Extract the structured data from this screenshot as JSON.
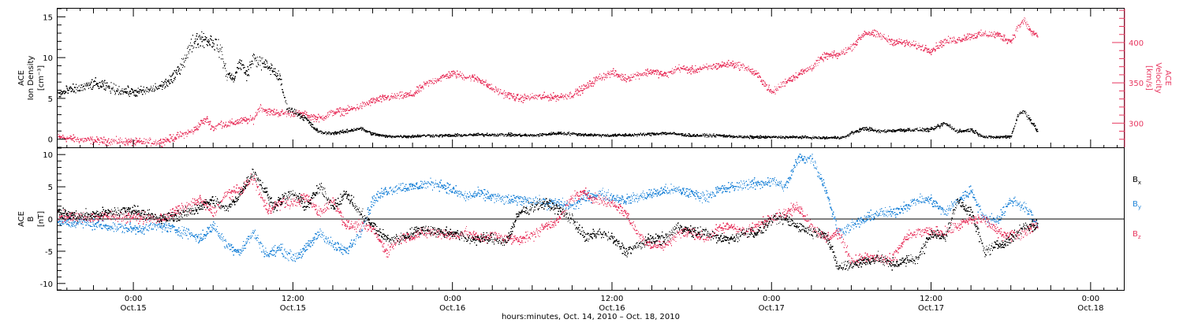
{
  "colors": {
    "black": "#000000",
    "red": "#e8365f",
    "blue": "#1f84d8"
  },
  "footer_label": "hours:minutes, Oct. 14, 2010 – Oct. 18, 2010",
  "time_ticks": [
    {
      "time": "0:00",
      "date": "Oct.15",
      "hour": 24
    },
    {
      "time": "12:00",
      "date": "Oct.15",
      "hour": 36
    },
    {
      "time": "0:00",
      "date": "Oct.16",
      "hour": 48
    },
    {
      "time": "12:00",
      "date": "Oct.16",
      "hour": 60
    },
    {
      "time": "0:00",
      "date": "Oct.17",
      "hour": 72
    },
    {
      "time": "12:00",
      "date": "Oct.17",
      "hour": 84
    },
    {
      "time": "0:00",
      "date": "Oct.18",
      "hour": 96
    }
  ],
  "chart_data": [
    {
      "type": "scatter",
      "panel": "top",
      "xlim_hours": [
        18.3,
        98.5
      ],
      "ylabel": [
        "ACE",
        "Ion Density",
        "[cm⁻³]"
      ],
      "ylim": [
        -1,
        16
      ],
      "yticks": [
        0,
        5,
        10,
        15
      ],
      "y2label": [
        "ACE",
        "Velocity",
        "[km/s]"
      ],
      "y2lim": [
        270,
        442
      ],
      "y2ticks": [
        300,
        350,
        400
      ],
      "series": [
        {
          "axis": "left",
          "color": "black",
          "x": [
            18.3,
            19,
            20,
            21,
            22,
            23,
            24,
            25,
            26,
            27,
            28,
            28.5,
            29,
            30,
            30.5,
            31,
            31.5,
            32,
            32.5,
            33,
            33.5,
            34,
            34.5,
            35,
            35.5,
            36,
            36.5,
            37,
            37.5,
            38,
            38.5,
            39,
            40,
            41,
            42,
            43,
            44,
            45,
            46,
            47,
            48,
            50,
            52,
            54,
            56,
            58,
            60,
            62,
            64,
            66,
            68,
            70,
            72,
            74,
            76,
            77.5,
            78,
            79,
            80,
            82,
            84,
            85,
            86,
            87,
            88,
            89,
            90,
            90.5,
            91,
            92
          ],
          "y": [
            5.5,
            6.0,
            6.3,
            6.8,
            6.5,
            6.0,
            5.8,
            6.0,
            6.5,
            7.5,
            10.5,
            12.0,
            12.5,
            12.0,
            11.0,
            8.0,
            7.5,
            9.5,
            8.0,
            10.0,
            9.5,
            9.0,
            8.5,
            7.5,
            4.0,
            3.5,
            3.0,
            2.5,
            1.5,
            0.9,
            0.8,
            0.8,
            1.0,
            1.4,
            0.7,
            0.4,
            0.4,
            0.4,
            0.5,
            0.5,
            0.5,
            0.6,
            0.6,
            0.5,
            0.8,
            0.6,
            0.5,
            0.6,
            0.8,
            0.5,
            0.5,
            0.3,
            0.3,
            0.3,
            0.2,
            0.3,
            0.8,
            1.4,
            1.0,
            1.2,
            1.2,
            2.0,
            1.0,
            1.2,
            0.3,
            0.3,
            0.4,
            3.0,
            3.5,
            1.0
          ]
        },
        {
          "axis": "right",
          "color": "red",
          "x": [
            18.3,
            20,
            22,
            23,
            24,
            26,
            28.5,
            29,
            29.5,
            30,
            30.5,
            31,
            32,
            33,
            33.5,
            34,
            35,
            36,
            37,
            38,
            39,
            40,
            41,
            42,
            43,
            44,
            45,
            46,
            47,
            48,
            49,
            50,
            51,
            52,
            53,
            54,
            55,
            56,
            57,
            58,
            59,
            60,
            61,
            62,
            63,
            64,
            65,
            66,
            67,
            68,
            69,
            70,
            71,
            72,
            73,
            74,
            75,
            76,
            77,
            78,
            79,
            80,
            81,
            82,
            83,
            84,
            85,
            86,
            87,
            88,
            89,
            90,
            90.5,
            91,
            91.5,
            92
          ],
          "y": [
            283,
            280,
            278,
            278,
            277,
            277,
            291,
            300,
            305,
            294,
            300,
            299,
            303,
            305,
            321,
            315,
            313,
            313,
            310,
            306,
            314,
            316,
            321,
            328,
            332,
            334,
            336,
            349,
            356,
            362,
            358,
            355,
            343,
            336,
            331,
            333,
            333,
            333,
            336,
            345,
            357,
            363,
            356,
            361,
            365,
            360,
            369,
            366,
            369,
            372,
            374,
            370,
            359,
            338,
            352,
            361,
            370,
            384,
            385,
            395,
            413,
            410,
            402,
            400,
            396,
            391,
            402,
            404,
            409,
            411,
            410,
            402,
            420,
            428,
            413,
            410
          ]
        }
      ]
    },
    {
      "type": "scatter",
      "panel": "bottom",
      "xlim_hours": [
        18.3,
        98.5
      ],
      "ylabel": [
        "ACE",
        "B",
        "[nT]"
      ],
      "ylim": [
        -11,
        11
      ],
      "yticks": [
        -10,
        -5,
        0,
        5,
        10
      ],
      "zero_line": true,
      "legend": [
        {
          "label": "B",
          "sub": "x",
          "color": "black"
        },
        {
          "label": "B",
          "sub": "y",
          "color": "blue"
        },
        {
          "label": "B",
          "sub": "z",
          "color": "red"
        }
      ],
      "series": [
        {
          "name": "Bx",
          "color": "black",
          "x": [
            18.3,
            20,
            22,
            24,
            26,
            28,
            29,
            30,
            31,
            32,
            33,
            34,
            34.5,
            35,
            36,
            37,
            38,
            39,
            40,
            41,
            42,
            43,
            44,
            45,
            46,
            47,
            48,
            49,
            50,
            51,
            52,
            53,
            54,
            55,
            56,
            57,
            58,
            59,
            60,
            61,
            62,
            63,
            64,
            65,
            66,
            67,
            68,
            69,
            70,
            71,
            72,
            73,
            74,
            75,
            76,
            77,
            78,
            79,
            80,
            81,
            82,
            83,
            84,
            85,
            86,
            87,
            88,
            89,
            90,
            91,
            92
          ],
          "y": [
            1.0,
            0.5,
            1.0,
            1.5,
            0.0,
            1.0,
            2.0,
            3.0,
            1.5,
            4.0,
            7.5,
            4.0,
            2.0,
            3.0,
            4.0,
            2.0,
            5.0,
            2.0,
            4.0,
            1.0,
            -1.0,
            -3.0,
            -3.0,
            -2.0,
            -1.5,
            -2.0,
            -2.0,
            -3.0,
            -3.0,
            -3.0,
            -3.5,
            1.0,
            2.0,
            2.5,
            1.5,
            0.0,
            -3.0,
            -2.0,
            -3.0,
            -5.0,
            -4.0,
            -3.0,
            -3.0,
            -1.0,
            -2.0,
            -2.0,
            -3.0,
            -3.0,
            -2.0,
            -2.0,
            0.0,
            0.0,
            -1.0,
            -2.0,
            -2.0,
            -7.5,
            -7.0,
            -6.5,
            -6.0,
            -7.0,
            -6.5,
            -6.0,
            -2.0,
            -3.0,
            3.0,
            1.0,
            -5.0,
            -4.0,
            -3.0,
            -1.0,
            -1.0
          ]
        },
        {
          "name": "By",
          "color": "blue",
          "x": [
            18.3,
            20,
            22,
            24,
            26,
            28,
            29,
            30,
            31,
            32,
            33,
            34,
            35,
            36,
            37,
            38,
            39,
            40,
            41,
            42,
            43,
            44,
            45,
            46,
            47,
            48,
            49,
            50,
            51,
            52,
            53,
            54,
            55,
            56,
            57,
            58,
            59,
            60,
            61,
            62,
            63,
            64,
            65,
            66,
            67,
            68,
            69,
            70,
            71,
            72,
            73,
            74,
            75,
            76,
            77,
            78,
            79,
            80,
            81,
            82,
            83,
            84,
            85,
            86,
            87,
            88,
            89,
            90,
            91,
            92
          ],
          "y": [
            -0.5,
            -0.5,
            -1.0,
            -1.5,
            -1.0,
            -2.0,
            -3.0,
            -1.0,
            -4.0,
            -5.0,
            -2.0,
            -5.5,
            -4.5,
            -6.0,
            -4.5,
            -2.0,
            -4.0,
            -5.0,
            -2.0,
            3.0,
            4.5,
            5.0,
            5.0,
            5.5,
            5.5,
            4.5,
            3.5,
            4.0,
            3.5,
            3.0,
            3.0,
            3.0,
            2.5,
            2.5,
            2.0,
            3.5,
            4.0,
            3.5,
            3.0,
            3.5,
            4.0,
            4.5,
            4.5,
            4.0,
            3.5,
            4.5,
            5.0,
            5.5,
            5.5,
            6.0,
            5.0,
            9.5,
            9.5,
            5.0,
            -2.0,
            -1.0,
            0.0,
            1.0,
            1.0,
            2.0,
            3.0,
            3.0,
            1.0,
            3.0,
            4.5,
            0.0,
            0.0,
            3.0,
            2.0,
            -1.0
          ]
        },
        {
          "name": "Bz",
          "color": "red",
          "x": [
            18.3,
            20,
            22,
            24,
            26,
            28,
            29,
            30,
            31,
            32,
            33,
            34,
            35,
            36,
            37,
            38,
            39,
            40,
            41,
            42,
            43,
            44,
            45,
            46,
            47,
            48,
            49,
            50,
            51,
            52,
            53,
            54,
            55,
            56,
            57,
            58,
            59,
            60,
            61,
            62,
            63,
            64,
            65,
            66,
            67,
            68,
            69,
            70,
            71,
            72,
            73,
            74,
            75,
            76,
            77,
            78,
            79,
            80,
            81,
            82,
            83,
            84,
            85,
            86,
            87,
            88,
            89,
            90,
            91,
            92
          ],
          "y": [
            0.5,
            0.3,
            0.5,
            0.5,
            0.0,
            2.0,
            3.0,
            1.0,
            4.0,
            4.5,
            6.5,
            1.5,
            2.5,
            2.5,
            3.5,
            1.0,
            3.0,
            -1.0,
            -1.0,
            -1.5,
            -5.0,
            -3.0,
            -2.5,
            -2.0,
            -2.0,
            -2.5,
            -2.0,
            -3.0,
            -2.5,
            -3.0,
            -3.0,
            -2.5,
            -1.0,
            0.0,
            3.5,
            4.0,
            3.0,
            2.5,
            1.0,
            -2.5,
            -4.0,
            -4.0,
            -2.0,
            -2.0,
            -3.0,
            -1.5,
            -1.0,
            -2.0,
            -1.0,
            0.5,
            1.0,
            2.0,
            -1.0,
            -3.0,
            -2.0,
            -6.5,
            -6.0,
            -6.0,
            -6.5,
            -3.0,
            -2.0,
            -2.0,
            -2.0,
            -1.0,
            0.0,
            0.0,
            -2.0,
            -2.5,
            -2.0,
            -0.5
          ]
        }
      ]
    }
  ]
}
